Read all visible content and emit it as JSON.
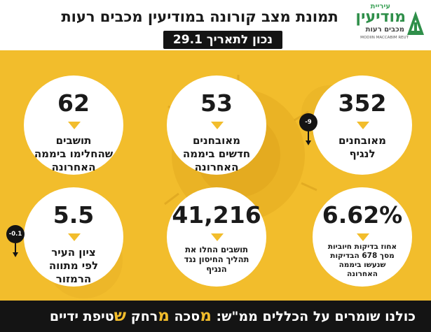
{
  "header": {
    "title": "תמונת מצב קורונה במודיעין מכבים רעות",
    "date": "נכון לתאריך 29.1"
  },
  "logo": {
    "small": "עיריית",
    "main": "מודיעין",
    "sub": "מכבים רעות",
    "en": "MODIIN MACCABIM REUT"
  },
  "stats": [
    {
      "id": "verified-patients",
      "value": "352",
      "label": [
        "מאובחנים",
        "לנגיף"
      ],
      "delta": "-9"
    },
    {
      "id": "new-verified",
      "value": "53",
      "label": [
        "מאובחנים",
        "חדשים ביממה",
        "האחרונה"
      ]
    },
    {
      "id": "recovered",
      "value": "62",
      "label": [
        "תושבים",
        "שהחלימו ביממה",
        "האחרונה"
      ]
    },
    {
      "id": "positive-rate",
      "value": "6.62%",
      "label": [
        "אחוז בדיקות חיוביות",
        "מסך 678 הבדיקות",
        "שנעשו ביממה",
        "האחרונה"
      ]
    },
    {
      "id": "vaccinated",
      "value": "41,216",
      "label": [
        "תושבים החלו את",
        "תהליך החיסון נגד",
        "הנגיף"
      ]
    },
    {
      "id": "city-score",
      "value": "5.5",
      "label": [
        "ציון העיר",
        "לפי מתווה",
        "הרמזור"
      ],
      "delta": "-0.1"
    }
  ],
  "colors": {
    "accent": "#f2bd2c",
    "dark": "#141414",
    "logo_green": "#2f8f4a"
  },
  "footer": {
    "prefix": "כולנו שומרים על הכללים",
    "mamash": "ממ\"ש:",
    "w1_hl": "מ",
    "w1_rest": "סכה",
    "w2_hl": "מ",
    "w2_rest": "רחק",
    "w3_hl": "ש",
    "w3_rest": "טיפת ידיים"
  }
}
